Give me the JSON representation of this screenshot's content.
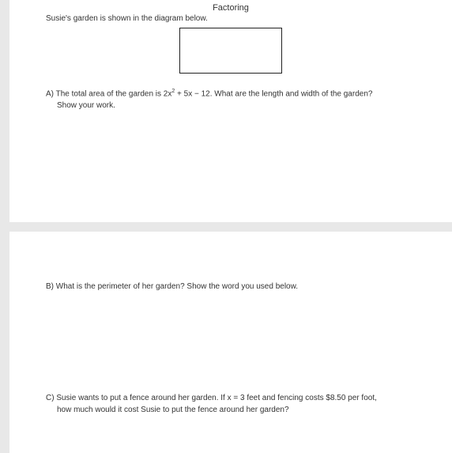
{
  "title": "Factoring",
  "intro": "Susie's garden is shown in the diagram below.",
  "rectangle": {
    "width": 130,
    "height": 58,
    "border_color": "#222222"
  },
  "questionA": {
    "prefix": "A) The total area of the garden is ",
    "expr_a": "2x",
    "expr_exp": "2",
    "expr_b": " + 5x − 12.",
    "suffix": "  What are the length and width of the garden?",
    "line2": "Show your work."
  },
  "questionB": "B) What is the perimeter of her garden?  Show the word you used below.",
  "questionC": {
    "line1": "C)  Susie wants to put a fence around her garden.  If x = 3 feet and fencing costs $8.50 per foot,",
    "line2": "how much would it cost Susie to put the fence around her garden?"
  }
}
